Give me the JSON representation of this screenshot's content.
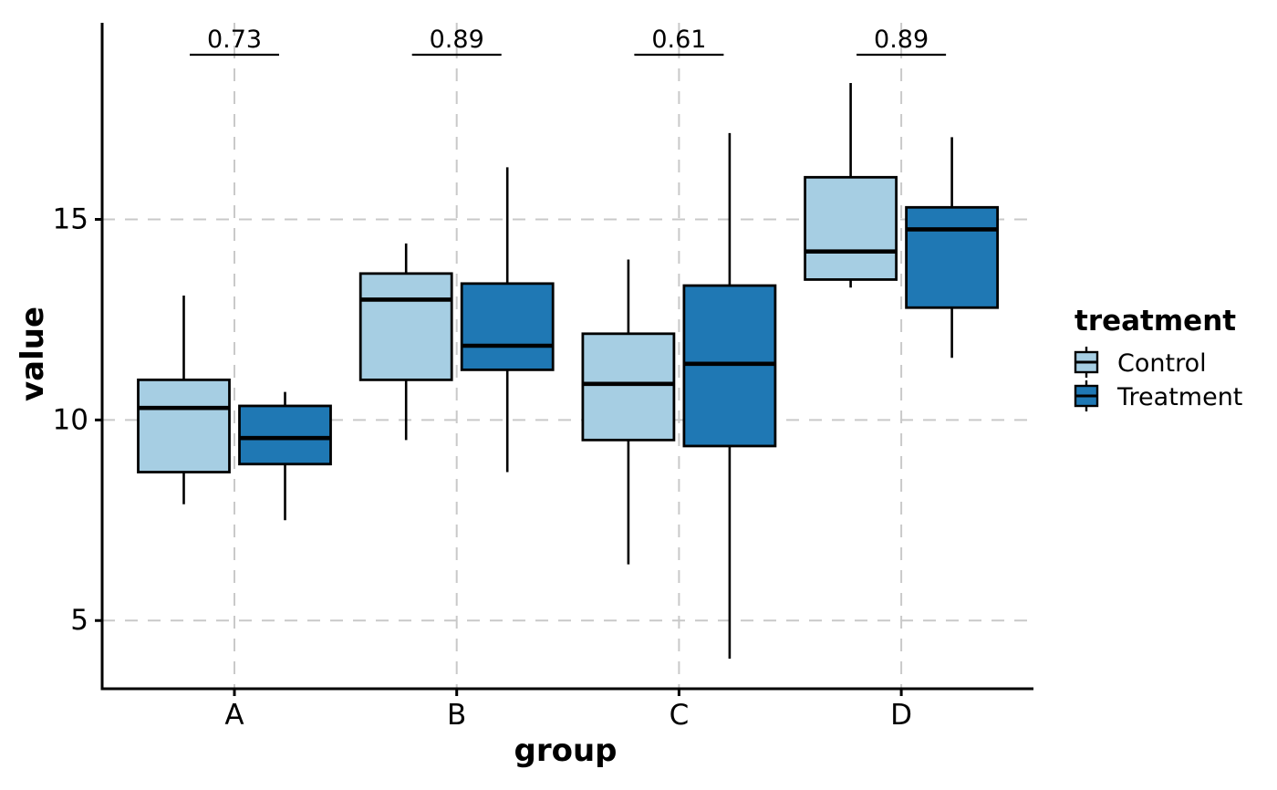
{
  "figure": {
    "background": "#ffffff",
    "text_color": "#000000",
    "grid_color": "#c9c9c9"
  },
  "chart_data": {
    "type": "boxplot",
    "title": "",
    "xlabel": "group",
    "ylabel": "value",
    "categories": [
      "A",
      "B",
      "C",
      "D"
    ],
    "yticks": [
      5,
      10,
      15
    ],
    "ylim": [
      3.3,
      19.9
    ],
    "grid": "dashed both axes",
    "legend": {
      "title": "treatment",
      "position": "right",
      "entries": [
        {
          "label": "Control",
          "color": "#a6cee3"
        },
        {
          "label": "Treatment",
          "color": "#1f78b4"
        }
      ]
    },
    "series": [
      {
        "name": "Control",
        "color": "#a6cee3",
        "boxes": [
          {
            "group": "A",
            "whisker_low": 7.9,
            "q1": 8.7,
            "median": 10.3,
            "q3": 11.0,
            "whisker_high": 13.1
          },
          {
            "group": "B",
            "whisker_low": 9.5,
            "q1": 11.0,
            "median": 13.0,
            "q3": 13.65,
            "whisker_high": 14.4
          },
          {
            "group": "C",
            "whisker_low": 6.4,
            "q1": 9.5,
            "median": 10.9,
            "q3": 12.15,
            "whisker_high": 14.0
          },
          {
            "group": "D",
            "whisker_low": 13.3,
            "q1": 13.5,
            "median": 14.2,
            "q3": 16.05,
            "whisker_high": 18.4
          }
        ]
      },
      {
        "name": "Treatment",
        "color": "#1f78b4",
        "boxes": [
          {
            "group": "A",
            "whisker_low": 7.5,
            "q1": 8.9,
            "median": 9.55,
            "q3": 10.35,
            "whisker_high": 10.7
          },
          {
            "group": "B",
            "whisker_low": 8.7,
            "q1": 11.25,
            "median": 11.85,
            "q3": 13.4,
            "whisker_high": 16.3
          },
          {
            "group": "C",
            "whisker_low": 4.05,
            "q1": 9.35,
            "median": 11.4,
            "q3": 13.35,
            "whisker_high": 17.15
          },
          {
            "group": "D",
            "whisker_low": 11.55,
            "q1": 12.8,
            "median": 14.75,
            "q3": 15.3,
            "whisker_high": 17.05
          }
        ]
      }
    ],
    "p_values": [
      "0.73",
      "0.89",
      "0.61",
      "0.89"
    ]
  }
}
